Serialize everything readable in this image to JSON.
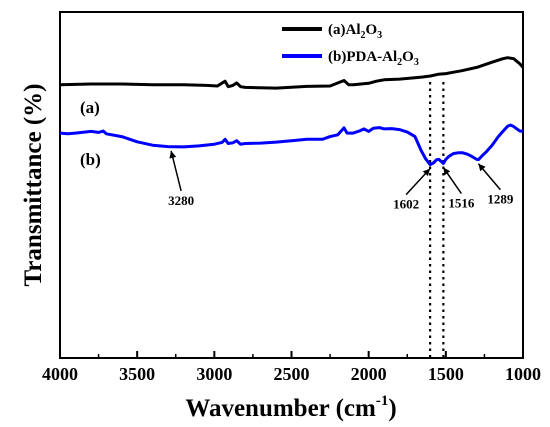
{
  "chart_data": {
    "type": "line",
    "xlabel_main": "Wavenumber (cm",
    "xlabel_sup": "-1",
    "xlabel_close": ")",
    "ylabel": "Transmittance (%)",
    "xlim": [
      4000,
      1000
    ],
    "x_ticks": [
      4000,
      3500,
      3000,
      2500,
      2000,
      1500,
      1000
    ],
    "x_tick_labels": [
      "4000",
      "3500",
      "3000",
      "2500",
      "2000",
      "1500",
      "1000"
    ],
    "ylim": [
      0,
      100
    ],
    "y_ticks_labeled": false,
    "legend_position": "top-right",
    "series": [
      {
        "name": "(a)Al2O3",
        "legend_main": "(a)Al",
        "legend_sub1": "2",
        "legend_mid": "O",
        "legend_sub2": "3",
        "curve_label": "(a)",
        "color": "#000000",
        "points": [
          [
            4000,
            79.0
          ],
          [
            3800,
            79.2
          ],
          [
            3600,
            79.2
          ],
          [
            3400,
            79.0
          ],
          [
            3200,
            79.0
          ],
          [
            3050,
            78.8
          ],
          [
            2980,
            78.6
          ],
          [
            2930,
            80.0
          ],
          [
            2910,
            78.4
          ],
          [
            2880,
            78.8
          ],
          [
            2855,
            79.5
          ],
          [
            2830,
            78.4
          ],
          [
            2800,
            78.2
          ],
          [
            2600,
            78.0
          ],
          [
            2400,
            78.5
          ],
          [
            2250,
            78.6
          ],
          [
            2160,
            80.2
          ],
          [
            2130,
            79.0
          ],
          [
            2100,
            79.0
          ],
          [
            2050,
            79.2
          ],
          [
            2000,
            79.4
          ],
          [
            1950,
            80.0
          ],
          [
            1900,
            80.4
          ],
          [
            1800,
            80.6
          ],
          [
            1700,
            81.0
          ],
          [
            1650,
            81.2
          ],
          [
            1600,
            81.5
          ],
          [
            1550,
            82.0
          ],
          [
            1500,
            82.2
          ],
          [
            1450,
            82.6
          ],
          [
            1400,
            83.0
          ],
          [
            1300,
            84.0
          ],
          [
            1200,
            85.5
          ],
          [
            1130,
            86.5
          ],
          [
            1100,
            86.8
          ],
          [
            1060,
            86.5
          ],
          [
            1020,
            85.0
          ],
          [
            1000,
            84.0
          ]
        ]
      },
      {
        "name": "(b)PDA-Al2O3",
        "legend_main": "(b)PDA-Al",
        "legend_sub1": "2",
        "legend_mid": "O",
        "legend_sub2": "3",
        "curve_label": "(b)",
        "color": "#0000ff",
        "points": [
          [
            4000,
            65.0
          ],
          [
            3950,
            64.8
          ],
          [
            3900,
            65.0
          ],
          [
            3800,
            65.5
          ],
          [
            3750,
            65.2
          ],
          [
            3720,
            65.6
          ],
          [
            3700,
            64.8
          ],
          [
            3600,
            64.0
          ],
          [
            3500,
            62.5
          ],
          [
            3400,
            61.5
          ],
          [
            3300,
            61.1
          ],
          [
            3200,
            61.0
          ],
          [
            3100,
            61.3
          ],
          [
            3000,
            61.8
          ],
          [
            2950,
            62.3
          ],
          [
            2930,
            63.2
          ],
          [
            2910,
            62.0
          ],
          [
            2880,
            62.2
          ],
          [
            2855,
            62.8
          ],
          [
            2830,
            61.8
          ],
          [
            2800,
            62.0
          ],
          [
            2700,
            62.1
          ],
          [
            2600,
            62.4
          ],
          [
            2500,
            62.8
          ],
          [
            2400,
            63.2
          ],
          [
            2300,
            63.2
          ],
          [
            2250,
            64.0
          ],
          [
            2200,
            64.5
          ],
          [
            2160,
            66.5
          ],
          [
            2140,
            65.0
          ],
          [
            2100,
            65.0
          ],
          [
            2060,
            65.6
          ],
          [
            2030,
            66.2
          ],
          [
            2000,
            65.5
          ],
          [
            1970,
            66.4
          ],
          [
            1930,
            66.6
          ],
          [
            1900,
            66.2
          ],
          [
            1850,
            66.3
          ],
          [
            1800,
            66.0
          ],
          [
            1750,
            65.3
          ],
          [
            1700,
            64.0
          ],
          [
            1660,
            60.0
          ],
          [
            1630,
            57.5
          ],
          [
            1602,
            55.9
          ],
          [
            1580,
            56.4
          ],
          [
            1560,
            57.3
          ],
          [
            1545,
            57.4
          ],
          [
            1530,
            56.8
          ],
          [
            1516,
            56.2
          ],
          [
            1500,
            57.4
          ],
          [
            1480,
            58.3
          ],
          [
            1450,
            59.1
          ],
          [
            1420,
            59.3
          ],
          [
            1390,
            59.3
          ],
          [
            1360,
            58.9
          ],
          [
            1330,
            58.2
          ],
          [
            1300,
            57.4
          ],
          [
            1289,
            57.3
          ],
          [
            1270,
            58.2
          ],
          [
            1240,
            59.5
          ],
          [
            1200,
            61.5
          ],
          [
            1160,
            64.0
          ],
          [
            1130,
            65.5
          ],
          [
            1100,
            67.0
          ],
          [
            1080,
            67.3
          ],
          [
            1060,
            66.9
          ],
          [
            1040,
            66.2
          ],
          [
            1020,
            65.6
          ],
          [
            1000,
            65.5
          ]
        ]
      }
    ],
    "dotted_lines_x": [
      1602,
      1516
    ],
    "annotations": [
      {
        "text": "3280",
        "point_x": 3280,
        "point_y": 61.0,
        "dx": 10,
        "dy": 44
      },
      {
        "text": "1602",
        "point_x": 1602,
        "point_y": 55.9,
        "dx": -24,
        "dy": 30
      },
      {
        "text": "1516",
        "point_x": 1516,
        "point_y": 56.2,
        "dx": 18,
        "dy": 30
      },
      {
        "text": "1289",
        "point_x": 1289,
        "point_y": 57.3,
        "dx": 22,
        "dy": 30
      }
    ]
  }
}
